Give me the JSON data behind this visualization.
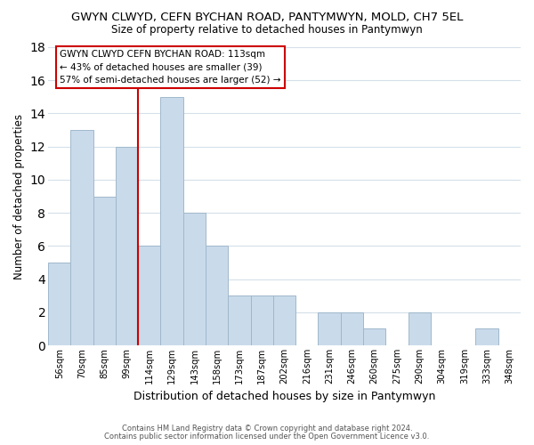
{
  "title": "GWYN CLWYD, CEFN BYCHAN ROAD, PANTYMWYN, MOLD, CH7 5EL",
  "subtitle": "Size of property relative to detached houses in Pantymwyn",
  "xlabel": "Distribution of detached houses by size in Pantymwyn",
  "ylabel": "Number of detached properties",
  "bar_labels": [
    "56sqm",
    "70sqm",
    "85sqm",
    "99sqm",
    "114sqm",
    "129sqm",
    "143sqm",
    "158sqm",
    "173sqm",
    "187sqm",
    "202sqm",
    "216sqm",
    "231sqm",
    "246sqm",
    "260sqm",
    "275sqm",
    "290sqm",
    "304sqm",
    "319sqm",
    "333sqm",
    "348sqm"
  ],
  "bar_values": [
    5,
    13,
    9,
    12,
    6,
    15,
    8,
    6,
    3,
    3,
    3,
    0,
    2,
    2,
    1,
    0,
    2,
    0,
    0,
    1,
    0
  ],
  "bar_color": "#c9daea",
  "bar_edge_color": "#a0b8cc",
  "annotation_title": "GWYN CLWYD CEFN BYCHAN ROAD: 113sqm",
  "annotation_line1": "← 43% of detached houses are smaller (39)",
  "annotation_line2": "57% of semi-detached houses are larger (52) →",
  "footer1": "Contains HM Land Registry data © Crown copyright and database right 2024.",
  "footer2": "Contains public sector information licensed under the Open Government Licence v3.0.",
  "ylim": [
    0,
    18
  ],
  "vline_color": "#cc0000",
  "box_facecolor": "#ffffff",
  "box_edge_color": "#cc0000",
  "background_color": "#ffffff",
  "grid_color": "#d5e0ea",
  "title_fontsize": 9.5,
  "subtitle_fontsize": 8.5,
  "ylabel_fontsize": 8.5,
  "xlabel_fontsize": 9
}
